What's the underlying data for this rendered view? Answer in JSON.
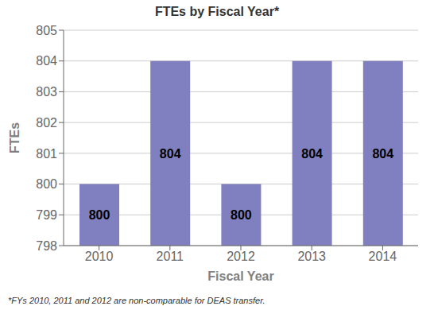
{
  "chart_data": {
    "type": "bar",
    "title": "FTEs by Fiscal Year*",
    "xlabel": "Fiscal Year",
    "ylabel": "FTEs",
    "categories": [
      "2010",
      "2011",
      "2012",
      "2013",
      "2014"
    ],
    "values": [
      800,
      804,
      800,
      804,
      804
    ],
    "color": "#8080c0",
    "ylim": [
      798,
      805
    ],
    "yticks": [
      798,
      799,
      800,
      801,
      802,
      803,
      804,
      805
    ],
    "grid": true,
    "data_labels": true,
    "footnote": "*FYs 2010, 2011 and 2012 are non-comparable for DEAS transfer."
  }
}
